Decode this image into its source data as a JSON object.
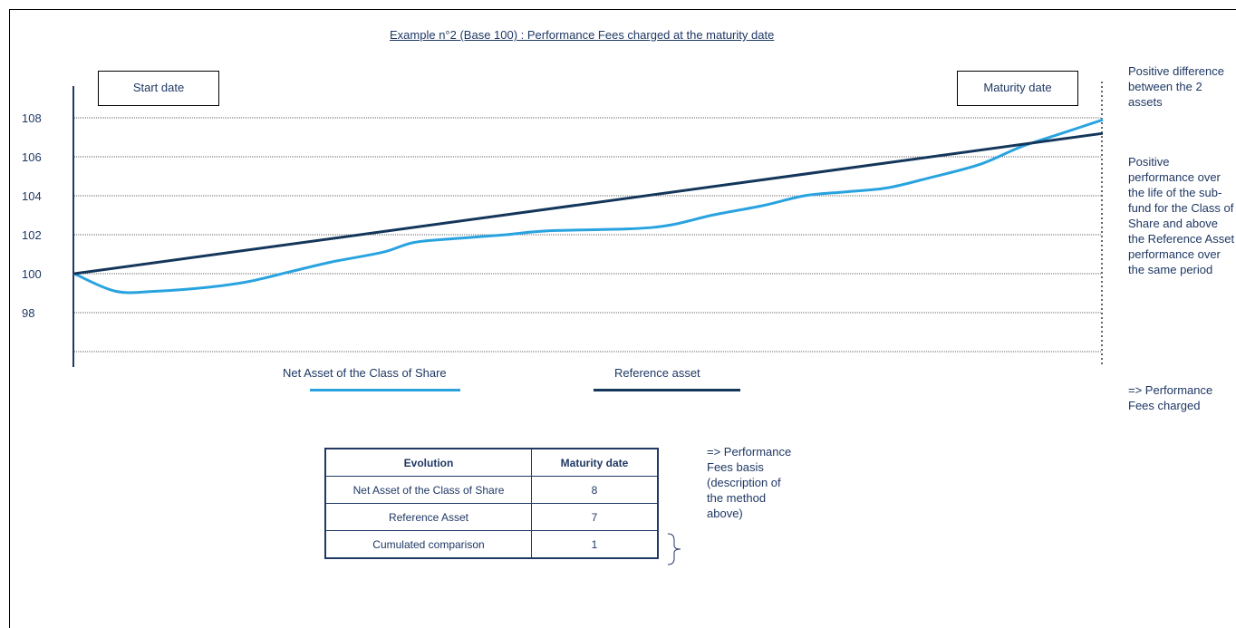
{
  "title": "Example  n°2 (Base 100) : Performance Fees charged at the maturity date",
  "boxes": {
    "start": "Start date",
    "maturity": "Maturity date"
  },
  "legend": {
    "nav": "Net Asset of the Class of Share",
    "ref": "Reference asset"
  },
  "colors": {
    "nav": "#29a3e0",
    "ref": "#14365a",
    "text": "#1f3864",
    "grid": "#333333"
  },
  "side_notes": {
    "top": "Positive difference between the 2 assets",
    "middle": "Positive performance over the life of the sub-fund for the Class of Share and above the Reference Asset performance over the same period",
    "bottom": "=> Performance Fees charged"
  },
  "basis_note": "=> Performance Fees basis (description of the method above)",
  "table": {
    "headers": [
      "Evolution",
      "Maturity date"
    ],
    "rows": [
      {
        "label": "Net Asset of the Class of Share",
        "value": "8"
      },
      {
        "label": "Reference Asset",
        "value": "7"
      },
      {
        "label": "Cumulated comparison",
        "value": "1"
      }
    ]
  },
  "chart_data": {
    "type": "line",
    "title": "Example  n°2 (Base 100) : Performance Fees charged at the maturity date",
    "xlabel": "",
    "ylabel": "",
    "ylim": [
      96,
      110
    ],
    "yticks": [
      98,
      100,
      102,
      104,
      106,
      108
    ],
    "x_range": [
      0,
      1
    ],
    "grid": true,
    "legend": "bottom",
    "series": [
      {
        "name": "Net Asset of the Class of Share",
        "x": [
          0,
          0.04,
          0.08,
          0.13,
          0.17,
          0.21,
          0.25,
          0.3,
          0.33,
          0.37,
          0.42,
          0.46,
          0.54,
          0.58,
          0.62,
          0.67,
          0.71,
          0.75,
          0.79,
          0.83,
          0.88,
          0.92,
          0.96,
          1.0
        ],
        "y": [
          100,
          99.1,
          99.1,
          99.3,
          99.6,
          100.1,
          100.6,
          101.1,
          101.6,
          101.8,
          102.0,
          102.2,
          102.3,
          102.5,
          103.0,
          103.5,
          104.0,
          104.2,
          104.4,
          104.9,
          105.6,
          106.5,
          107.2,
          107.9
        ]
      },
      {
        "name": "Reference asset",
        "x": [
          0,
          1
        ],
        "y": [
          100,
          107.2
        ]
      }
    ]
  }
}
